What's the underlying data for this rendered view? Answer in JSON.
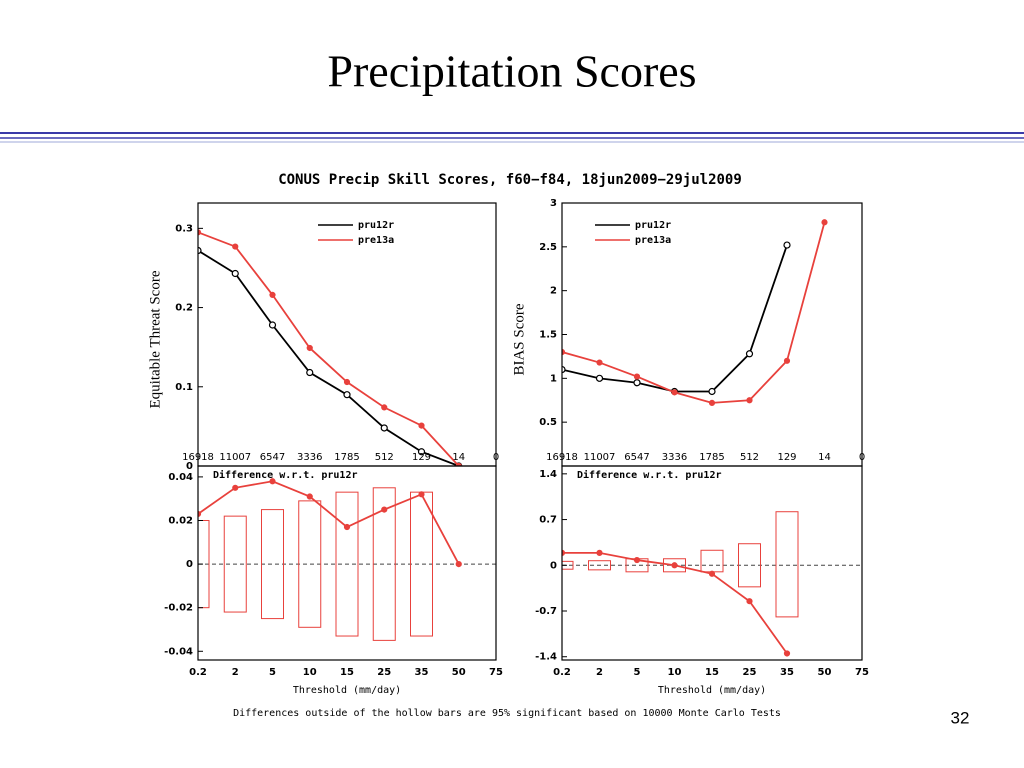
{
  "slide_title": "Precipitation Scores",
  "figure_title": "CONUS Precip Skill Scores, f60−f84, 18jun2009−29jul2009",
  "footnote": "Differences outside of the hollow bars are 95% significant based on 10000 Monte Carlo Tests",
  "page_number": "32",
  "chart_data": [
    {
      "type": "line",
      "ylabel": "Equitable Threat Score",
      "categories": [
        "16918",
        "11007",
        "6547",
        "3336",
        "1785",
        "512",
        "129",
        "14",
        "0"
      ],
      "category_color": "#3355dd",
      "series": [
        {
          "name": "pru12r",
          "color": "#000000",
          "marker": "hollow",
          "values": [
            0.272,
            0.243,
            0.178,
            0.118,
            0.09,
            0.048,
            0.018,
            0,
            null
          ]
        },
        {
          "name": "pre13a",
          "color": "#e8413c",
          "marker": "filled",
          "values": [
            0.295,
            0.277,
            0.216,
            0.149,
            0.106,
            0.074,
            0.051,
            0,
            null
          ]
        }
      ],
      "ylim": [
        0,
        0.332
      ],
      "yticks": [
        0,
        0.1,
        0.2,
        0.3
      ],
      "legend": "upper right"
    },
    {
      "type": "line",
      "ylabel": "BIAS Score",
      "categories": [
        "16918",
        "11007",
        "6547",
        "3336",
        "1785",
        "512",
        "129",
        "14",
        "0"
      ],
      "category_color": "#3355dd",
      "series": [
        {
          "name": "pru12r",
          "color": "#000000",
          "marker": "hollow",
          "values": [
            1.1,
            1.0,
            0.95,
            0.85,
            0.85,
            1.28,
            2.52,
            null,
            null
          ]
        },
        {
          "name": "pre13a",
          "color": "#e8413c",
          "marker": "filled",
          "values": [
            1.3,
            1.18,
            1.02,
            0.84,
            0.72,
            0.75,
            1.2,
            2.78,
            null
          ]
        }
      ],
      "ylim": [
        0,
        3
      ],
      "yticks": [
        0.5,
        1,
        1.5,
        2,
        2.5,
        3
      ],
      "legend": "upper left"
    },
    {
      "type": "line",
      "title": "Difference w.r.t. pru12r",
      "xlabel": "Threshold (mm/day)",
      "categories": [
        "0.2",
        "2",
        "5",
        "10",
        "15",
        "25",
        "35",
        "50",
        "75"
      ],
      "series": [
        {
          "color": "#e8413c",
          "marker": "filled",
          "values": [
            0.023,
            0.035,
            0.038,
            0.031,
            0.017,
            0.025,
            0.032,
            0,
            null
          ]
        }
      ],
      "intervals": {
        "color": "#e8413c",
        "upper": [
          0.02,
          0.022,
          0.025,
          0.029,
          0.033,
          0.035,
          0.033,
          null,
          null
        ],
        "lower": [
          -0.02,
          -0.022,
          -0.025,
          -0.029,
          -0.033,
          -0.035,
          -0.033,
          null,
          null
        ]
      },
      "zero_line": true,
      "ylim": [
        -0.044,
        0.045
      ],
      "yticks": [
        -0.04,
        -0.02,
        0,
        0.02,
        0.04
      ]
    },
    {
      "type": "line",
      "title": "Difference w.r.t. pru12r",
      "xlabel": "Threshold (mm/day)",
      "categories": [
        "0.2",
        "2",
        "5",
        "10",
        "15",
        "25",
        "35",
        "50",
        "75"
      ],
      "series": [
        {
          "color": "#e8413c",
          "marker": "filled",
          "values": [
            0.19,
            0.19,
            0.08,
            0,
            -0.13,
            -0.55,
            -1.35,
            null,
            null
          ]
        }
      ],
      "intervals": {
        "color": "#e8413c",
        "upper": [
          0.06,
          0.07,
          0.1,
          0.1,
          0.23,
          0.33,
          0.82,
          null,
          null
        ],
        "lower": [
          -0.06,
          -0.07,
          -0.1,
          -0.1,
          -0.1,
          -0.33,
          -0.79,
          null,
          null
        ]
      },
      "zero_line": true,
      "ylim": [
        -1.45,
        1.52
      ],
      "yticks": [
        -1.4,
        -0.7,
        0,
        0.7,
        1.4
      ]
    }
  ]
}
